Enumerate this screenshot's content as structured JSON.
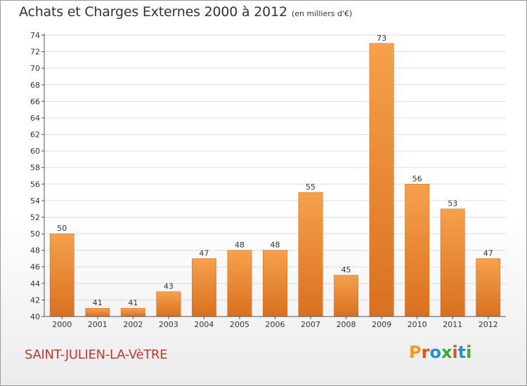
{
  "header": {
    "title": "Achats et Charges Externes 2000 à 2012",
    "unit": "(en milliers d'€)"
  },
  "footer": {
    "commune": "SAINT-JULIEN-LA-VèTRE",
    "logo": "Proxiti",
    "logo_colors": [
      "#f29a1a",
      "#e8501e",
      "#2a8fd6",
      "#3aa935",
      "#e8501e",
      "#2a8fd6",
      "#3aa935"
    ]
  },
  "colors": {
    "bar_light": "#f6a14c",
    "bar_dark": "#d9701f",
    "axis": "#555555",
    "grid": "#dddddd"
  },
  "chart_data": {
    "type": "bar",
    "categories": [
      "2000",
      "2001",
      "2002",
      "2003",
      "2004",
      "2005",
      "2006",
      "2007",
      "2008",
      "2009",
      "2010",
      "2011",
      "2012"
    ],
    "values": [
      50,
      41,
      41,
      43,
      47,
      48,
      48,
      55,
      45,
      73,
      56,
      53,
      47
    ],
    "data_labels": [
      "50",
      "41",
      "41",
      "43",
      "47",
      "48",
      "48",
      "55",
      "45",
      "73",
      "56",
      "53",
      "47"
    ],
    "ylim": [
      40,
      74
    ],
    "yticks": [
      40,
      42,
      44,
      46,
      48,
      50,
      52,
      54,
      56,
      58,
      60,
      62,
      64,
      66,
      68,
      70,
      72,
      74
    ],
    "grid": true
  }
}
